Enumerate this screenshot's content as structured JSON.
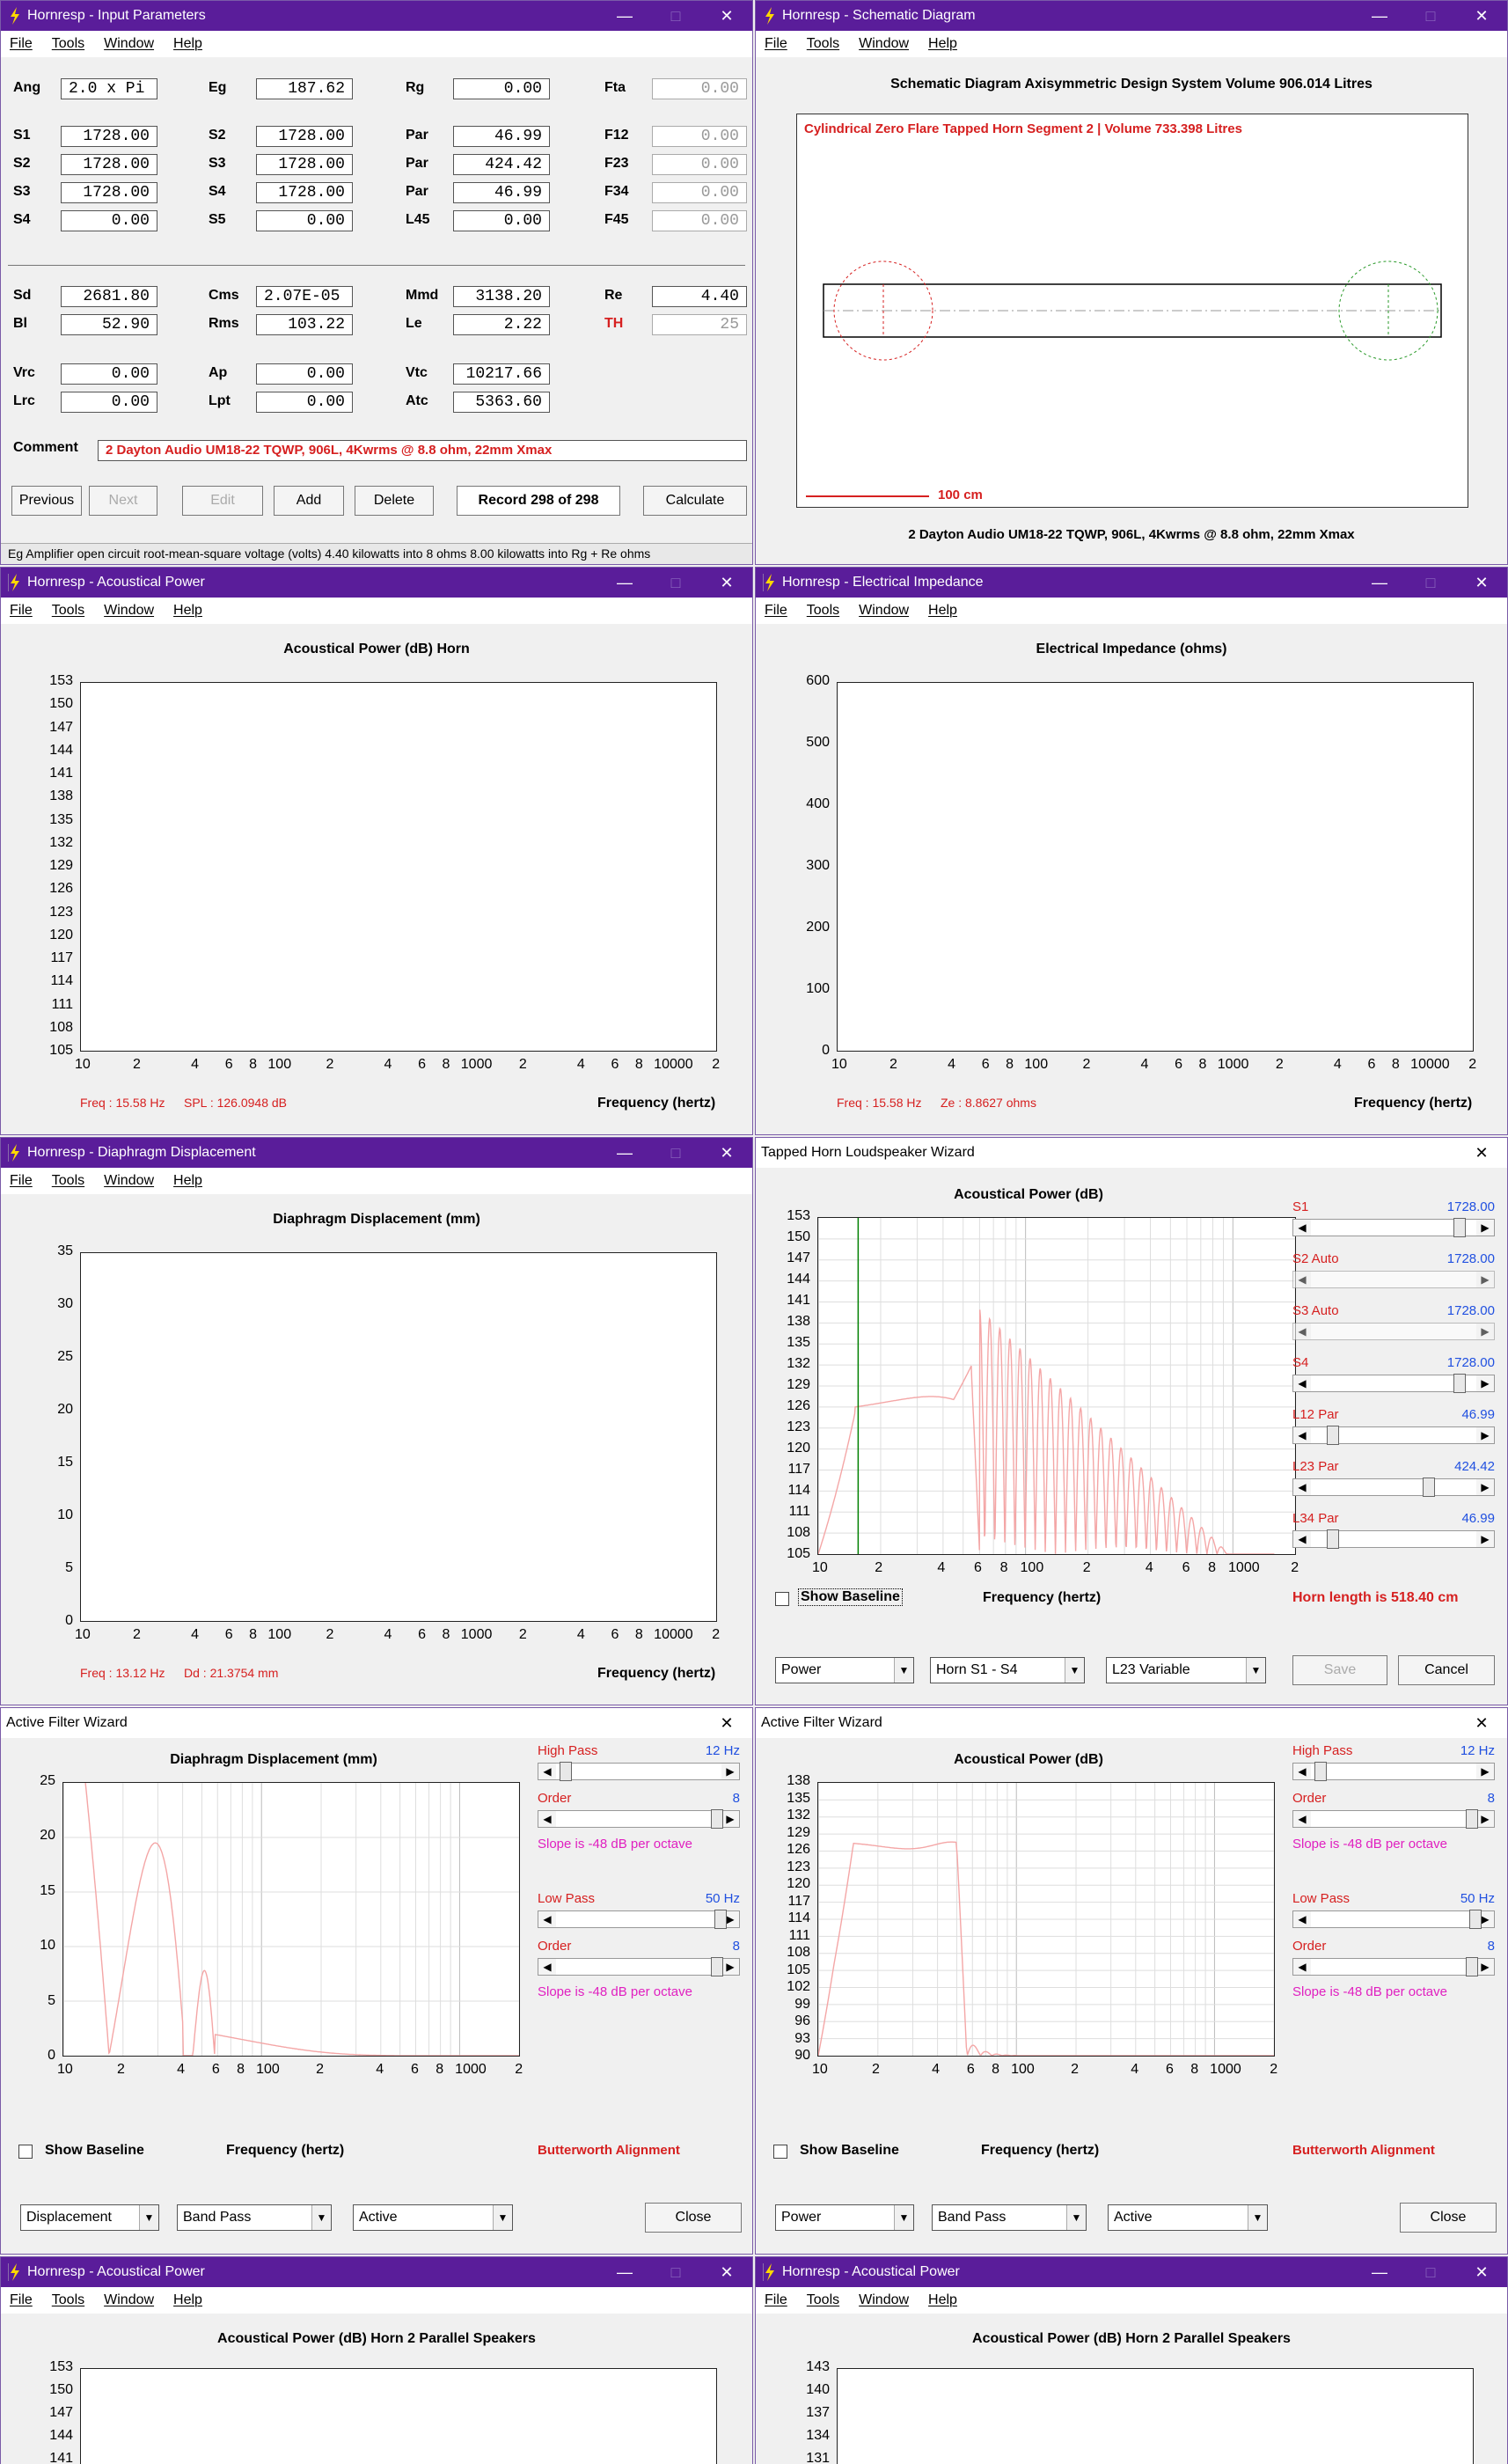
{
  "input_params": {
    "title": "Hornresp - Input Parameters",
    "menu": [
      "File",
      "Tools",
      "Window",
      "Help"
    ],
    "rows1": [
      [
        {
          "l": "Ang",
          "v": "2.0 x Pi",
          "left": true
        },
        {
          "l": "Eg",
          "v": "187.62"
        },
        {
          "l": "Rg",
          "v": "0.00"
        },
        {
          "l": "Fta",
          "v": "0.00",
          "g": true
        }
      ],
      [
        {
          "l": "S1",
          "v": "1728.00"
        },
        {
          "l": "S2",
          "v": "1728.00"
        },
        {
          "l": "Par",
          "v": "46.99"
        },
        {
          "l": "F12",
          "v": "0.00",
          "g": true
        }
      ],
      [
        {
          "l": "S2",
          "v": "1728.00"
        },
        {
          "l": "S3",
          "v": "1728.00"
        },
        {
          "l": "Par",
          "v": "424.42"
        },
        {
          "l": "F23",
          "v": "0.00",
          "g": true
        }
      ],
      [
        {
          "l": "S3",
          "v": "1728.00"
        },
        {
          "l": "S4",
          "v": "1728.00"
        },
        {
          "l": "Par",
          "v": "46.99"
        },
        {
          "l": "F34",
          "v": "0.00",
          "g": true
        }
      ],
      [
        {
          "l": "S4",
          "v": "0.00"
        },
        {
          "l": "S5",
          "v": "0.00"
        },
        {
          "l": "L45",
          "v": "0.00"
        },
        {
          "l": "F45",
          "v": "0.00",
          "g": true
        }
      ]
    ],
    "rows2": [
      [
        {
          "l": "Sd",
          "v": "2681.80"
        },
        {
          "l": "Cms",
          "v": "2.07E-05",
          "left": true
        },
        {
          "l": "Mmd",
          "v": "3138.20"
        },
        {
          "l": "Re",
          "v": "4.40"
        }
      ],
      [
        {
          "l": "Bl",
          "v": "52.90"
        },
        {
          "l": "Rms",
          "v": "103.22"
        },
        {
          "l": "Le",
          "v": "2.22"
        },
        {
          "l": "TH",
          "v": "25",
          "g": true,
          "red": true
        }
      ]
    ],
    "rows3": [
      [
        {
          "l": "Vrc",
          "v": "0.00"
        },
        {
          "l": "Ap",
          "v": "0.00"
        },
        {
          "l": "Vtc",
          "v": "10217.66"
        }
      ],
      [
        {
          "l": "Lrc",
          "v": "0.00"
        },
        {
          "l": "Lpt",
          "v": "0.00"
        },
        {
          "l": "Atc",
          "v": "5363.60"
        }
      ]
    ],
    "comment_label": "Comment",
    "comment": "2 Dayton Audio UM18-22 TQWP, 906L, 4Kwrms @ 8.8 ohm, 22mm Xmax",
    "buttons": [
      "Previous",
      "Next",
      "Edit",
      "Add",
      "Delete",
      "Record 298 of 298",
      "Calculate"
    ],
    "status": "Eg  Amplifier open circuit root-mean-square voltage (volts)  4.40 kilowatts into 8 ohms  8.00 kilowatts into Rg + Re ohms"
  },
  "schematic": {
    "title": "Hornresp - Schematic Diagram",
    "heading": "Schematic Diagram   Axisymmetric Design   System Volume 906.014 Litres",
    "segment": "Cylindrical Zero Flare Tapped Horn Segment 2 | Volume 733.398 Litres",
    "scale": "100 cm",
    "caption": "2 Dayton Audio UM18-22 TQWP, 906L, 4Kwrms @ 8.8 ohm, 22mm Xmax"
  },
  "acoustical_power": {
    "title": "Hornresp - Acoustical Power",
    "chart_title": "Acoustical Power (dB)   Horn",
    "yticks": [
      "153",
      "150",
      "147",
      "144",
      "141",
      "138",
      "135",
      "132",
      "129",
      "126",
      "123",
      "120",
      "117",
      "114",
      "111",
      "108",
      "105"
    ],
    "xticks": [
      "10",
      "2",
      "4",
      "6",
      "8",
      "100",
      "2",
      "4",
      "6",
      "8",
      "1000",
      "2",
      "4",
      "6",
      "8",
      "10000",
      "2"
    ],
    "xlabel": "Frequency (hertz)",
    "readout_freq": "Freq : 15.58 Hz",
    "readout_val": "SPL : 126.0948 dB"
  },
  "impedance": {
    "title": "Hornresp - Electrical Impedance",
    "chart_title": "Electrical Impedance (ohms)",
    "yticks": [
      "600",
      "500",
      "400",
      "300",
      "200",
      "100",
      "0"
    ],
    "xticks": [
      "10",
      "2",
      "4",
      "6",
      "8",
      "100",
      "2",
      "4",
      "6",
      "8",
      "1000",
      "2",
      "4",
      "6",
      "8",
      "10000",
      "2"
    ],
    "xlabel": "Frequency (hertz)",
    "readout_freq": "Freq : 15.58 Hz",
    "readout_val": "Ze : 8.8627 ohms"
  },
  "displacement": {
    "title": "Hornresp - Diaphragm Displacement",
    "chart_title": "Diaphragm Displacement (mm)",
    "yticks": [
      "35",
      "30",
      "25",
      "20",
      "15",
      "10",
      "5",
      "0"
    ],
    "xticks": [
      "10",
      "2",
      "4",
      "6",
      "8",
      "100",
      "2",
      "4",
      "6",
      "8",
      "1000",
      "2",
      "4",
      "6",
      "8",
      "10000",
      "2"
    ],
    "xlabel": "Frequency (hertz)",
    "readout_freq": "Freq : 13.12 Hz",
    "readout_val": "Dd : 21.3754 mm"
  },
  "wizard": {
    "title": "Tapped Horn Loudspeaker Wizard",
    "chart_title": "Acoustical Power (dB)",
    "yticks": [
      "153",
      "150",
      "147",
      "144",
      "141",
      "138",
      "135",
      "132",
      "129",
      "126",
      "123",
      "120",
      "117",
      "114",
      "111",
      "108",
      "105"
    ],
    "xticks": [
      "10",
      "2",
      "4",
      "6",
      "8",
      "100",
      "2",
      "4",
      "6",
      "8",
      "1000",
      "2"
    ],
    "xlabel": "Frequency (hertz)",
    "show_baseline": "Show Baseline",
    "sliders": [
      {
        "label": "S1",
        "value": "1728.00",
        "pos": 0.92
      },
      {
        "label": "S2  Auto",
        "value": "1728.00",
        "pos": null
      },
      {
        "label": "S3  Auto",
        "value": "1728.00",
        "pos": null
      },
      {
        "label": "S4",
        "value": "1728.00",
        "pos": 0.92
      },
      {
        "label": "L12  Par",
        "value": "46.99",
        "pos": 0.1
      },
      {
        "label": "L23  Par",
        "value": "424.42",
        "pos": 0.72
      },
      {
        "label": "L34  Par",
        "value": "46.99",
        "pos": 0.1
      }
    ],
    "horn_length": "Horn length is 518.40 cm",
    "combos": [
      "Power",
      "Horn S1 - S4",
      "L23 Variable"
    ],
    "save": "Save",
    "cancel": "Cancel"
  },
  "filter1": {
    "title": "Active Filter Wizard",
    "chart_title": "Diaphragm Displacement (mm)",
    "yticks": [
      "25",
      "20",
      "15",
      "10",
      "5",
      "0"
    ],
    "xticks": [
      "10",
      "2",
      "4",
      "6",
      "8",
      "100",
      "2",
      "4",
      "6",
      "8",
      "1000",
      "2"
    ],
    "xlabel": "Frequency (hertz)",
    "show_baseline": "Show Baseline",
    "high_pass": "High Pass",
    "hp_val": "12 Hz",
    "order": "Order",
    "order_val": "8",
    "slope": "Slope is -48 dB per octave",
    "low_pass": "Low Pass",
    "lp_val": "50 Hz",
    "alignment": "Butterworth Alignment",
    "combos": [
      "Displacement",
      "Band Pass",
      "Active"
    ],
    "close": "Close"
  },
  "filter2": {
    "title": "Active Filter Wizard",
    "chart_title": "Acoustical Power (dB)",
    "yticks": [
      "138",
      "135",
      "132",
      "129",
      "126",
      "123",
      "120",
      "117",
      "114",
      "111",
      "108",
      "105",
      "102",
      "99",
      "96",
      "93",
      "90"
    ],
    "xticks": [
      "10",
      "2",
      "4",
      "6",
      "8",
      "100",
      "2",
      "4",
      "6",
      "8",
      "1000",
      "2"
    ],
    "xlabel": "Frequency (hertz)",
    "show_baseline": "Show Baseline",
    "high_pass": "High Pass",
    "hp_val": "12 Hz",
    "order": "Order",
    "order_val": "8",
    "slope": "Slope is -48 dB per octave",
    "low_pass": "Low Pass",
    "lp_val": "50 Hz",
    "alignment": "Butterworth Alignment",
    "combos": [
      "Power",
      "Band Pass",
      "Active"
    ],
    "close": "Close"
  },
  "ap_parallel1": {
    "title": "Hornresp - Acoustical Power",
    "chart_title": "Acoustical Power (dB)   Horn   2 Parallel Speakers",
    "yticks": [
      "153",
      "150",
      "147",
      "144",
      "141"
    ]
  },
  "ap_parallel2": {
    "title": "Hornresp - Acoustical Power",
    "chart_title": "Acoustical Power (dB)   Horn   2 Parallel Speakers",
    "yticks": [
      "143",
      "140",
      "137",
      "134",
      "131"
    ]
  },
  "colors": {
    "titlebar": "#5a1d9a",
    "marker": "#d62020",
    "curve": "#000000",
    "wizard_curve": "#f4a6a6",
    "baseline_marker": "#008000"
  }
}
